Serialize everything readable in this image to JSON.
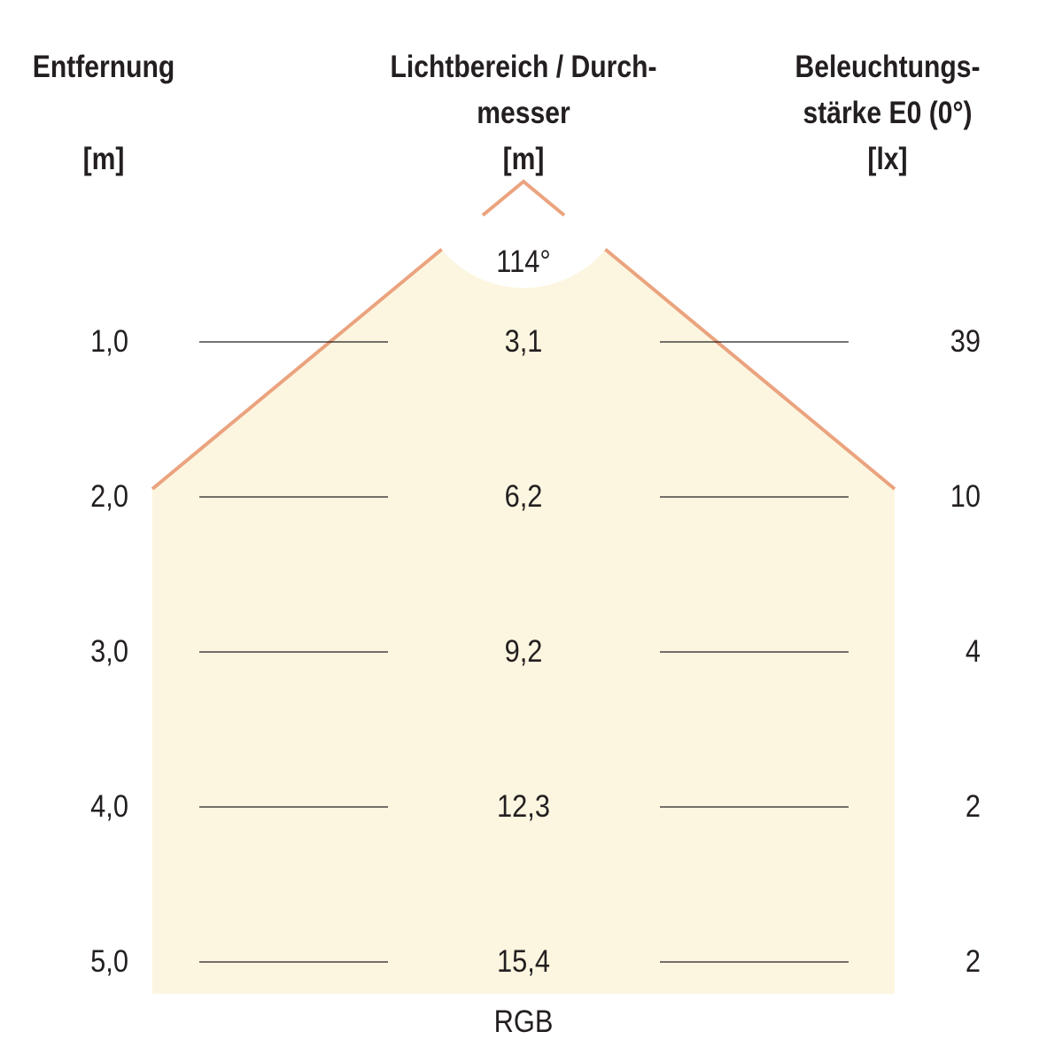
{
  "colors": {
    "beam_fill": "#fcf6e0",
    "beam_edge": "#eba37e",
    "rule_line": "#231f20",
    "text": "#231f20"
  },
  "headers": {
    "distance": {
      "line1": "Entfernung",
      "line2": "",
      "unit": "[m]"
    },
    "diameter": {
      "line1": "Lichtbereich / Durch-",
      "line2": "messer",
      "unit": "[m]"
    },
    "illuminance": {
      "line1": "Beleuchtungs-",
      "line2": "stärke E0 (0°)",
      "unit": "[lx]"
    }
  },
  "beam_angle": "114°",
  "rows": [
    {
      "distance": "1,0",
      "diameter": "3,1",
      "lux": "39"
    },
    {
      "distance": "2,0",
      "diameter": "6,2",
      "lux": "10"
    },
    {
      "distance": "3,0",
      "diameter": "9,2",
      "lux": "4"
    },
    {
      "distance": "4,0",
      "diameter": "12,3",
      "lux": "2"
    },
    {
      "distance": "5,0",
      "diameter": "15,4",
      "lux": "2"
    }
  ],
  "footer_label": "RGB"
}
